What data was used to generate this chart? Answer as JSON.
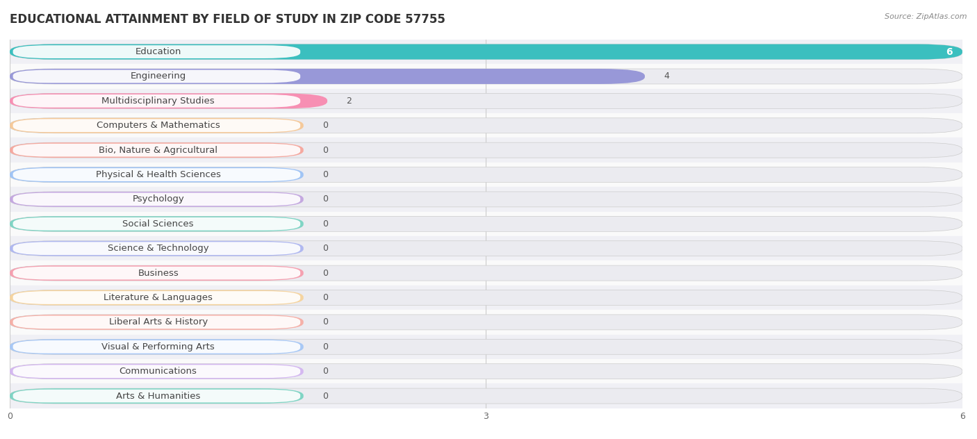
{
  "title": "EDUCATIONAL ATTAINMENT BY FIELD OF STUDY IN ZIP CODE 57755",
  "source": "Source: ZipAtlas.com",
  "categories": [
    "Education",
    "Engineering",
    "Multidisciplinary Studies",
    "Computers & Mathematics",
    "Bio, Nature & Agricultural",
    "Physical & Health Sciences",
    "Psychology",
    "Social Sciences",
    "Science & Technology",
    "Business",
    "Literature & Languages",
    "Liberal Arts & History",
    "Visual & Performing Arts",
    "Communications",
    "Arts & Humanities"
  ],
  "values": [
    6,
    4,
    2,
    0,
    0,
    0,
    0,
    0,
    0,
    0,
    0,
    0,
    0,
    0,
    0
  ],
  "bar_colors": [
    "#3bbfbf",
    "#9898d8",
    "#f78fb3",
    "#f5c99a",
    "#f5a9a0",
    "#a0c4f5",
    "#c4a8e0",
    "#7fd4c4",
    "#b0b8f0",
    "#f5a0b0",
    "#f5d4a0",
    "#f5b0a8",
    "#a8c8f5",
    "#d4b8f0",
    "#7fd4c4"
  ],
  "xlim": [
    0,
    6
  ],
  "xticks": [
    0,
    3,
    6
  ],
  "title_fontsize": 12,
  "label_fontsize": 9.5,
  "value_fontsize": 9
}
